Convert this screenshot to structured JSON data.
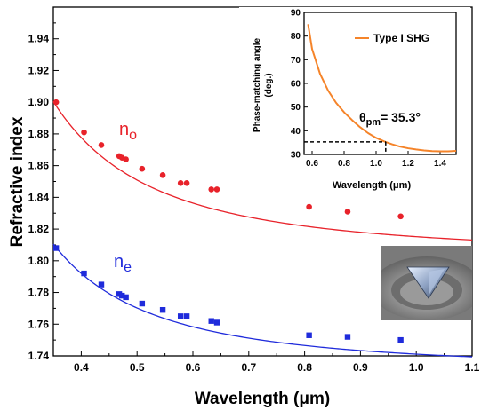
{
  "chart_data": [
    {
      "type": "scatter",
      "xlabel": "Wavelength (μm)",
      "ylabel": "Refractive index",
      "xlim": [
        0.35,
        1.1
      ],
      "ylim": [
        1.74,
        1.96
      ],
      "x_ticks": [
        "0.4",
        "0.5",
        "0.6",
        "0.7",
        "0.8",
        "0.9",
        "1.0",
        "1.1"
      ],
      "y_ticks": [
        "1.74",
        "1.76",
        "1.78",
        "1.80",
        "1.82",
        "1.84",
        "1.86",
        "1.88",
        "1.90",
        "1.92",
        "1.94"
      ],
      "grid": false,
      "series": [
        {
          "name": "n",
          "subscript": "o",
          "color": "#e8222a",
          "marker": "circle",
          "points": [
            [
              0.355,
              1.9
            ],
            [
              0.405,
              1.881
            ],
            [
              0.436,
              1.873
            ],
            [
              0.468,
              1.866
            ],
            [
              0.473,
              1.865
            ],
            [
              0.48,
              1.864
            ],
            [
              0.509,
              1.858
            ],
            [
              0.546,
              1.854
            ],
            [
              0.578,
              1.849
            ],
            [
              0.589,
              1.849
            ],
            [
              0.633,
              1.845
            ],
            [
              0.643,
              1.845
            ],
            [
              0.808,
              1.834
            ],
            [
              0.877,
              1.831
            ],
            [
              0.972,
              1.828
            ]
          ],
          "fit_coefficients": {
            "A": 1.8033,
            "B": 0.0119,
            "C": 0.0
          }
        },
        {
          "name": "n",
          "subscript": "e",
          "color": "#1f2bdb",
          "marker": "square",
          "points": [
            [
              0.355,
              1.808
            ],
            [
              0.405,
              1.792
            ],
            [
              0.436,
              1.785
            ],
            [
              0.468,
              1.779
            ],
            [
              0.473,
              1.778
            ],
            [
              0.48,
              1.777
            ],
            [
              0.509,
              1.773
            ],
            [
              0.546,
              1.769
            ],
            [
              0.578,
              1.765
            ],
            [
              0.589,
              1.765
            ],
            [
              0.633,
              1.762
            ],
            [
              0.643,
              1.761
            ],
            [
              0.808,
              1.753
            ],
            [
              0.877,
              1.752
            ],
            [
              0.972,
              1.75
            ]
          ],
          "fit_coefficients": {
            "A": 1.7314,
            "B": 0.0097,
            "C": 0.0
          }
        }
      ]
    },
    {
      "type": "line",
      "xlabel": "Wavelength (μm)",
      "ylabel_line1": "Phase-matching angle",
      "ylabel_line2": "(deg.)",
      "xlim": [
        0.55,
        1.5
      ],
      "ylim": [
        30,
        90
      ],
      "x_ticks": [
        "0.6",
        "0.8",
        "1.0",
        "1.2",
        "1.4"
      ],
      "y_ticks": [
        "30",
        "40",
        "50",
        "60",
        "70",
        "80",
        "90"
      ],
      "legend_placement": "top-right",
      "series": [
        {
          "name": "Type I SHG",
          "color": "#f5842a",
          "x": [
            0.575,
            0.6,
            0.65,
            0.7,
            0.75,
            0.8,
            0.85,
            0.9,
            0.95,
            1.0,
            1.05,
            1.1,
            1.15,
            1.2,
            1.25,
            1.3,
            1.35,
            1.4,
            1.45,
            1.5
          ],
          "y": [
            85.0,
            74.5,
            64.0,
            57.0,
            51.8,
            47.8,
            44.5,
            41.5,
            39.0,
            37.0,
            35.5,
            34.3,
            33.3,
            32.6,
            32.1,
            31.7,
            31.4,
            31.3,
            31.3,
            31.5
          ]
        }
      ],
      "annotation": {
        "symbol": "θ",
        "subscript": "pm",
        "text": "= 35.3°",
        "x": 1.06,
        "y": 35.3
      }
    }
  ],
  "photo": {
    "name": "crystal-photo"
  }
}
